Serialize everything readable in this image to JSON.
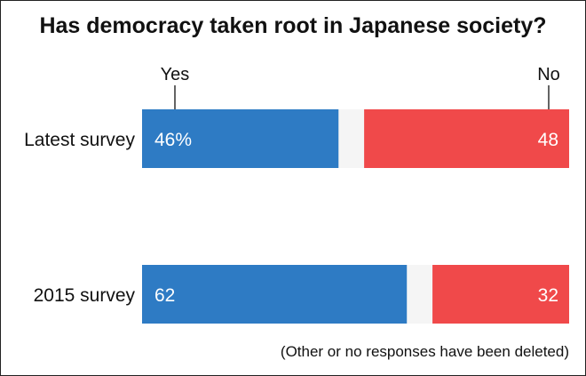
{
  "title": "Has democracy taken root in Japanese society?",
  "note": "(Other or no responses have been deleted)",
  "chart_data": {
    "type": "bar",
    "orientation": "horizontal-stacked",
    "title": "Has democracy taken root in Japanese society?",
    "categories": [
      "Latest survey",
      "2015 survey"
    ],
    "series": [
      {
        "name": "Yes",
        "values": [
          46,
          62
        ],
        "labels": [
          "46%",
          "62"
        ],
        "color": "#2e7bc4"
      },
      {
        "name": "No",
        "values": [
          48,
          32
        ],
        "labels": [
          "48",
          "32"
        ],
        "color": "#f0494a"
      }
    ],
    "remainder_color": "#f5f5f5",
    "xlim": [
      0,
      100
    ],
    "grid": false,
    "legend": "top, leader lines above first bar"
  }
}
